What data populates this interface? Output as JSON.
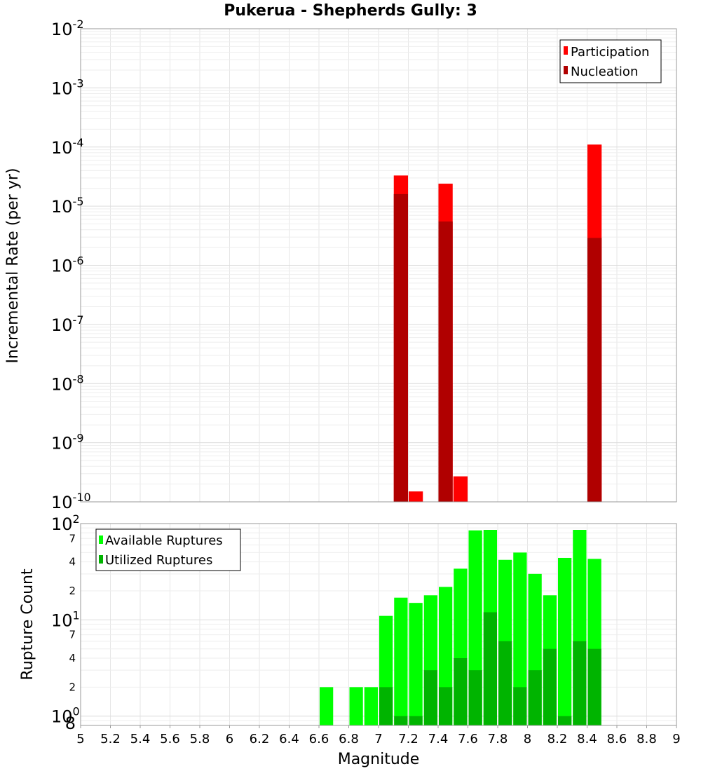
{
  "chart_data": [
    {
      "type": "bar",
      "title": "Pukerua - Shepherds Gully: 3",
      "xlabel": "",
      "ylabel": "Incremental Rate (per yr)",
      "yscale": "log",
      "ylim_exp": [
        -10,
        -2
      ],
      "xlim": [
        5,
        9
      ],
      "bar_width": 0.1,
      "legend_position": "top-right",
      "legend": [
        {
          "label": "Participation",
          "color": "#ff0000"
        },
        {
          "label": "Nucleation",
          "color": "#b00000"
        }
      ],
      "y_ticks": [
        {
          "base": "10",
          "exp": "-2",
          "power": -2
        },
        {
          "base": "10",
          "exp": "-3",
          "power": -3
        },
        {
          "base": "10",
          "exp": "-4",
          "power": -4
        },
        {
          "base": "10",
          "exp": "-5",
          "power": -5
        },
        {
          "base": "10",
          "exp": "-6",
          "power": -6
        },
        {
          "base": "10",
          "exp": "-7",
          "power": -7
        },
        {
          "base": "10",
          "exp": "-8",
          "power": -8
        },
        {
          "base": "10",
          "exp": "-9",
          "power": -9
        },
        {
          "base": "10",
          "exp": "-10",
          "power": -10
        }
      ],
      "series": [
        {
          "name": "Participation",
          "color": "#ff0000",
          "x": [
            7.15,
            7.25,
            7.45,
            7.55,
            8.45
          ],
          "values": [
            3.3e-05,
            1.5e-10,
            2.4e-05,
            2.7e-10,
            0.00011
          ]
        },
        {
          "name": "Nucleation",
          "color": "#b00000",
          "x": [
            7.15,
            7.45,
            8.45
          ],
          "values": [
            1.6e-05,
            5.5e-06,
            2.9e-06
          ]
        }
      ]
    },
    {
      "type": "bar",
      "title": "",
      "xlabel": "Magnitude",
      "ylabel": "Rupture Count",
      "yscale": "log",
      "ylim": [
        0.8,
        100
      ],
      "xlim": [
        5,
        9
      ],
      "bar_width": 0.1,
      "legend_position": "top-left",
      "legend": [
        {
          "label": "Available Ruptures",
          "color": "#00ff00"
        },
        {
          "label": "Utilized Ruptures",
          "color": "#00b400"
        }
      ],
      "x_ticks": [
        "5",
        "5.2",
        "5.4",
        "5.6",
        "5.8",
        "6",
        "6.2",
        "6.4",
        "6.6",
        "6.8",
        "7",
        "7.2",
        "7.4",
        "7.6",
        "7.8",
        "8",
        "8.2",
        "8.4",
        "8.6",
        "8.8",
        "9"
      ],
      "y_major_ticks": [
        {
          "base": "10",
          "exp": "2",
          "value": 100
        },
        {
          "base": "10",
          "exp": "1",
          "value": 10
        },
        {
          "base": "10",
          "exp": "0",
          "value": 1
        }
      ],
      "y_minor_ticks": [
        {
          "label": "7",
          "value": 70
        },
        {
          "label": "4",
          "value": 40
        },
        {
          "label": "2",
          "value": 20
        },
        {
          "label": "7",
          "value": 7
        },
        {
          "label": "4",
          "value": 4
        },
        {
          "label": "2",
          "value": 2
        },
        {
          "label": "8",
          "value": 0.8
        }
      ],
      "series": [
        {
          "name": "Available Ruptures",
          "color": "#00ff00",
          "x": [
            6.65,
            6.85,
            6.95,
            7.05,
            7.15,
            7.25,
            7.35,
            7.45,
            7.55,
            7.65,
            7.75,
            7.85,
            7.95,
            8.05,
            8.15,
            8.25,
            8.35,
            8.45
          ],
          "values": [
            2,
            2,
            2,
            11,
            17,
            15,
            18,
            22,
            34,
            85,
            86,
            42,
            50,
            30,
            18,
            44,
            86,
            43
          ]
        },
        {
          "name": "Utilized Ruptures",
          "color": "#00b400",
          "x": [
            7.05,
            7.15,
            7.25,
            7.35,
            7.45,
            7.55,
            7.65,
            7.75,
            7.85,
            7.95,
            8.05,
            8.15,
            8.25,
            8.35,
            8.45
          ],
          "values": [
            2,
            1,
            1,
            3,
            2,
            4,
            3,
            12,
            6,
            2,
            3,
            5,
            1,
            6,
            5
          ]
        }
      ]
    }
  ]
}
